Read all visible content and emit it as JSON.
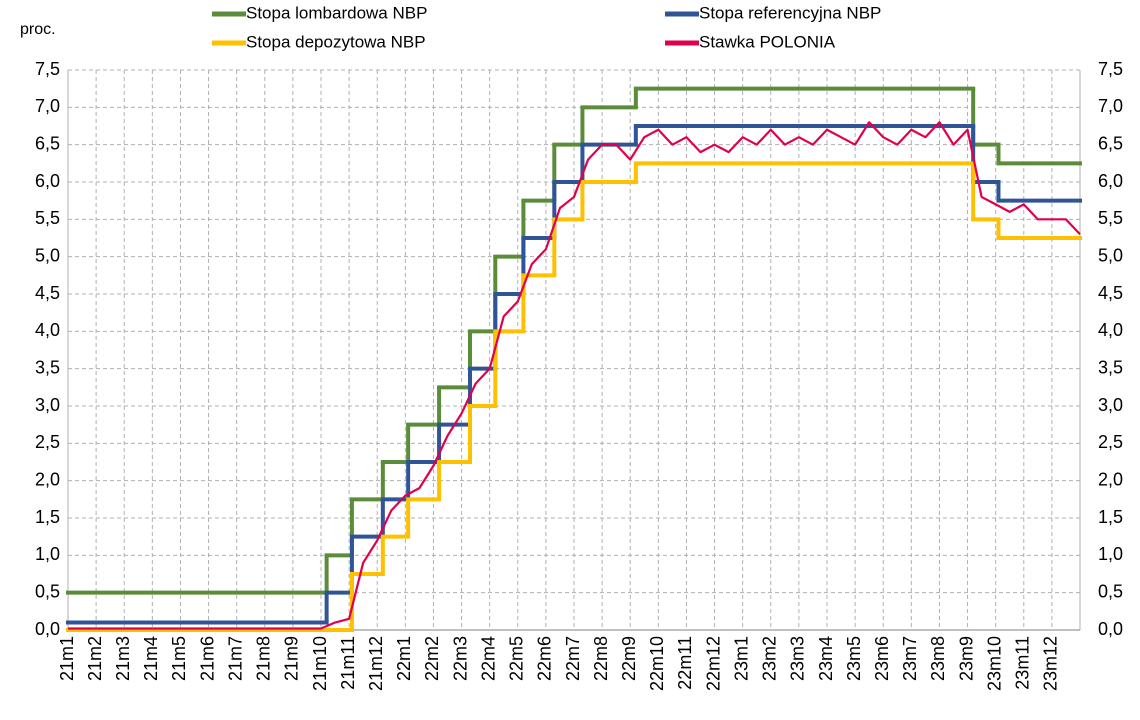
{
  "chart_data": {
    "type": "line",
    "y_axis_label": "proc.",
    "xlim": [
      0,
      36
    ],
    "xticks": [
      {
        "value": 0,
        "label": "21m1"
      },
      {
        "value": 1,
        "label": "21m2"
      },
      {
        "value": 2,
        "label": "21m3"
      },
      {
        "value": 3,
        "label": "21m4"
      },
      {
        "value": 4,
        "label": "21m5"
      },
      {
        "value": 5,
        "label": "21m6"
      },
      {
        "value": 6,
        "label": "21m7"
      },
      {
        "value": 7,
        "label": "21m8"
      },
      {
        "value": 8,
        "label": "21m9"
      },
      {
        "value": 9,
        "label": "21m10"
      },
      {
        "value": 10,
        "label": "21m11"
      },
      {
        "value": 11,
        "label": "21m12"
      },
      {
        "value": 12,
        "label": "22m1"
      },
      {
        "value": 13,
        "label": "22m2"
      },
      {
        "value": 14,
        "label": "22m3"
      },
      {
        "value": 15,
        "label": "22m4"
      },
      {
        "value": 16,
        "label": "22m5"
      },
      {
        "value": 17,
        "label": "22m6"
      },
      {
        "value": 18,
        "label": "22m7"
      },
      {
        "value": 19,
        "label": "22m8"
      },
      {
        "value": 20,
        "label": "22m9"
      },
      {
        "value": 21,
        "label": "22m10"
      },
      {
        "value": 22,
        "label": "22m11"
      },
      {
        "value": 23,
        "label": "22m12"
      },
      {
        "value": 24,
        "label": "23m1"
      },
      {
        "value": 25,
        "label": "23m2"
      },
      {
        "value": 26,
        "label": "23m3"
      },
      {
        "value": 27,
        "label": "23m4"
      },
      {
        "value": 28,
        "label": "23m5"
      },
      {
        "value": 29,
        "label": "23m6"
      },
      {
        "value": 30,
        "label": "23m7"
      },
      {
        "value": 31,
        "label": "23m8"
      },
      {
        "value": 32,
        "label": "23m9"
      },
      {
        "value": 33,
        "label": "23m10"
      },
      {
        "value": 34,
        "label": "23m11"
      },
      {
        "value": 35,
        "label": "23m12"
      }
    ],
    "ylim": [
      0,
      7.5
    ],
    "yticks": [
      {
        "value": 0,
        "label": "0,0"
      },
      {
        "value": 0.5,
        "label": "0,5"
      },
      {
        "value": 1,
        "label": "1,0"
      },
      {
        "value": 1.5,
        "label": "1,5"
      },
      {
        "value": 2,
        "label": "2,0"
      },
      {
        "value": 2.5,
        "label": "2,5"
      },
      {
        "value": 3,
        "label": "3,0"
      },
      {
        "value": 3.5,
        "label": "3,5"
      },
      {
        "value": 4,
        "label": "4,0"
      },
      {
        "value": 4.5,
        "label": "4,5"
      },
      {
        "value": 5,
        "label": "5,0"
      },
      {
        "value": 5.5,
        "label": "5,5"
      },
      {
        "value": 6,
        "label": "6,0"
      },
      {
        "value": 6.5,
        "label": "6,5"
      },
      {
        "value": 7,
        "label": "7,0"
      },
      {
        "value": 7.5,
        "label": "7,5"
      }
    ],
    "grid": true,
    "series": [
      {
        "name": "Stopa lombardowa NBP",
        "color": "#5b8c3a",
        "step": true,
        "x": [
          0,
          9.2,
          10.1,
          11.2,
          12.1,
          13.2,
          14.3,
          15.2,
          16.2,
          17.3,
          18.3,
          20.2,
          32.2,
          33.1
        ],
        "values": [
          0.5,
          1.0,
          1.75,
          2.25,
          2.75,
          3.25,
          4.0,
          5.0,
          5.75,
          6.5,
          7.0,
          7.25,
          6.5,
          6.25
        ]
      },
      {
        "name": "Stopa referencyjna NBP",
        "color": "#2f5597",
        "step": true,
        "x": [
          0,
          9.2,
          10.1,
          11.2,
          12.1,
          13.2,
          14.3,
          15.2,
          16.2,
          17.3,
          18.3,
          20.2,
          32.2,
          33.1
        ],
        "values": [
          0.1,
          0.5,
          1.25,
          1.75,
          2.25,
          2.75,
          3.5,
          4.5,
          5.25,
          6.0,
          6.5,
          6.75,
          6.0,
          5.75
        ]
      },
      {
        "name": "Stopa depozytowa NBP",
        "color": "#ffc000",
        "step": true,
        "x": [
          0,
          9.2,
          10.1,
          11.2,
          12.1,
          13.2,
          14.3,
          15.2,
          16.2,
          17.3,
          18.3,
          20.2,
          32.2,
          33.1
        ],
        "values": [
          0,
          0,
          0.75,
          1.25,
          1.75,
          2.25,
          3.0,
          4.0,
          4.75,
          5.5,
          6.0,
          6.25,
          5.5,
          5.25
        ]
      },
      {
        "name": "Stawka POLONIA",
        "color": "#e0004d",
        "step": false,
        "x": [
          0,
          0.5,
          1,
          1.5,
          2,
          2.5,
          3,
          3.5,
          4,
          4.5,
          5,
          5.5,
          6,
          6.5,
          7,
          7.5,
          8,
          8.5,
          9,
          9.5,
          10,
          10.5,
          11,
          11.5,
          12,
          12.5,
          13,
          13.5,
          14,
          14.5,
          15,
          15.5,
          16,
          16.5,
          17,
          17.5,
          18,
          18.5,
          19,
          19.5,
          20,
          20.5,
          21,
          21.5,
          22,
          22.5,
          23,
          23.5,
          24,
          24.5,
          25,
          25.5,
          26,
          26.5,
          27,
          27.5,
          28,
          28.5,
          29,
          29.5,
          30,
          30.5,
          31,
          31.5,
          32,
          32.5,
          33,
          33.5,
          34,
          34.5,
          35,
          35.5,
          36
        ],
        "values": [
          0.02,
          0.02,
          0.02,
          0.02,
          0.02,
          0.02,
          0.02,
          0.02,
          0.02,
          0.02,
          0.02,
          0.02,
          0.02,
          0.02,
          0.02,
          0.02,
          0.02,
          0.02,
          0.02,
          0.1,
          0.15,
          0.9,
          1.2,
          1.6,
          1.8,
          1.9,
          2.2,
          2.6,
          2.9,
          3.3,
          3.5,
          4.2,
          4.4,
          4.9,
          5.1,
          5.65,
          5.8,
          6.3,
          6.5,
          6.5,
          6.3,
          6.6,
          6.7,
          6.5,
          6.6,
          6.4,
          6.5,
          6.4,
          6.6,
          6.5,
          6.7,
          6.5,
          6.6,
          6.5,
          6.7,
          6.6,
          6.5,
          6.8,
          6.6,
          6.5,
          6.7,
          6.6,
          6.8,
          6.5,
          6.7,
          5.8,
          5.7,
          5.6,
          5.7,
          5.5,
          5.5,
          5.5,
          5.3
        ]
      }
    ]
  }
}
